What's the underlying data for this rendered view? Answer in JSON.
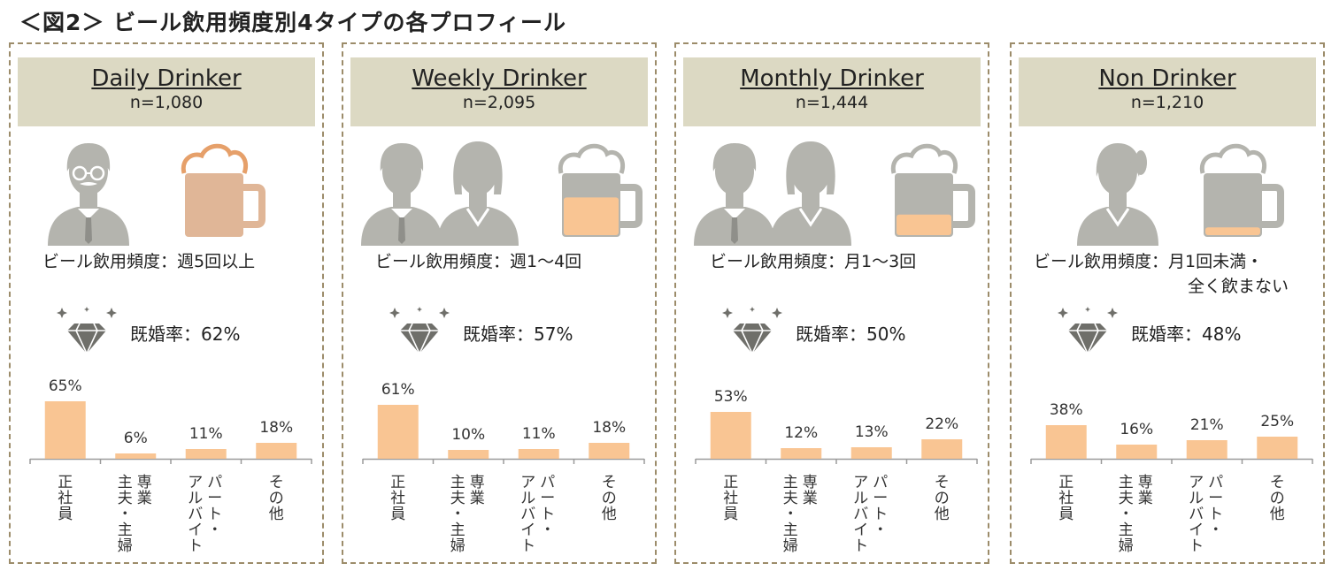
{
  "title": "＜図2＞ ビール飲用頻度別4タイプの各プロフィール",
  "colors": {
    "bar": "#f9c593",
    "header_bg": "#dcd9c3",
    "border": "#9c8c6a",
    "icon_gray": "#b4b4ae",
    "beer": "#f9c593"
  },
  "panels": [
    {
      "name": "Daily Drinker",
      "n": "n=1,080",
      "people": [
        "man-glasses-mustache"
      ],
      "beer_fill": 1.0,
      "beer_style": "full-light",
      "freq_line1": "ビール飲用頻度：週5回以上",
      "freq_line2": "",
      "marriage": "既婚率：62%"
    },
    {
      "name": "Weekly Drinker",
      "n": "n=2,095",
      "people": [
        "man",
        "woman"
      ],
      "beer_fill": 0.62,
      "beer_style": "partial",
      "freq_line1": "ビール飲用頻度：週1～4回",
      "freq_line2": "",
      "marriage": "既婚率：57%"
    },
    {
      "name": "Monthly Drinker",
      "n": "n=1,444",
      "people": [
        "man",
        "woman"
      ],
      "beer_fill": 0.35,
      "beer_style": "partial",
      "freq_line1": "ビール飲用頻度：月1～3回",
      "freq_line2": "",
      "marriage": "既婚率：50%"
    },
    {
      "name": "Non Drinker",
      "n": "n=1,210",
      "people": [
        "woman-ponytail"
      ],
      "beer_fill": 0.15,
      "beer_style": "partial",
      "freq_line1": "ビール飲用頻度：月1回未満・",
      "freq_line2": "全く飲まない",
      "marriage": "既婚率：48%"
    }
  ],
  "chart_data": [
    {
      "type": "bar",
      "title": "Daily Drinker",
      "categories": [
        "正社員",
        "専業主夫・主婦",
        "パート・アルバイト",
        "その他"
      ],
      "category_columns": [
        [
          "正社員"
        ],
        [
          "専業",
          "主夫・主婦"
        ],
        [
          "パート・",
          "アルバイト"
        ],
        [
          "その他"
        ]
      ],
      "values": [
        65,
        6,
        11,
        18
      ],
      "labels": [
        "65%",
        "6%",
        "11%",
        "18%"
      ],
      "unit": "%",
      "ylim": [
        0,
        100
      ],
      "grid": false
    },
    {
      "type": "bar",
      "title": "Weekly Drinker",
      "categories": [
        "正社員",
        "専業主夫・主婦",
        "パート・アルバイト",
        "その他"
      ],
      "category_columns": [
        [
          "正社員"
        ],
        [
          "専業",
          "主夫・主婦"
        ],
        [
          "パート・",
          "アルバイト"
        ],
        [
          "その他"
        ]
      ],
      "values": [
        61,
        10,
        11,
        18
      ],
      "labels": [
        "61%",
        "10%",
        "11%",
        "18%"
      ],
      "unit": "%",
      "ylim": [
        0,
        100
      ],
      "grid": false
    },
    {
      "type": "bar",
      "title": "Monthly Drinker",
      "categories": [
        "正社員",
        "専業主夫・主婦",
        "パート・アルバイト",
        "その他"
      ],
      "category_columns": [
        [
          "正社員"
        ],
        [
          "専業",
          "主夫・主婦"
        ],
        [
          "パート・",
          "アルバイト"
        ],
        [
          "その他"
        ]
      ],
      "values": [
        53,
        12,
        13,
        22
      ],
      "labels": [
        "53%",
        "12%",
        "13%",
        "22%"
      ],
      "unit": "%",
      "ylim": [
        0,
        100
      ],
      "grid": false
    },
    {
      "type": "bar",
      "title": "Non Drinker",
      "categories": [
        "正社員",
        "専業主夫・主婦",
        "パート・アルバイト",
        "その他"
      ],
      "category_columns": [
        [
          "正社員"
        ],
        [
          "専業",
          "主夫・主婦"
        ],
        [
          "パート・",
          "アルバイト"
        ],
        [
          "その他"
        ]
      ],
      "values": [
        38,
        16,
        21,
        25
      ],
      "labels": [
        "38%",
        "16%",
        "21%",
        "25%"
      ],
      "unit": "%",
      "ylim": [
        0,
        100
      ],
      "grid": false
    }
  ]
}
